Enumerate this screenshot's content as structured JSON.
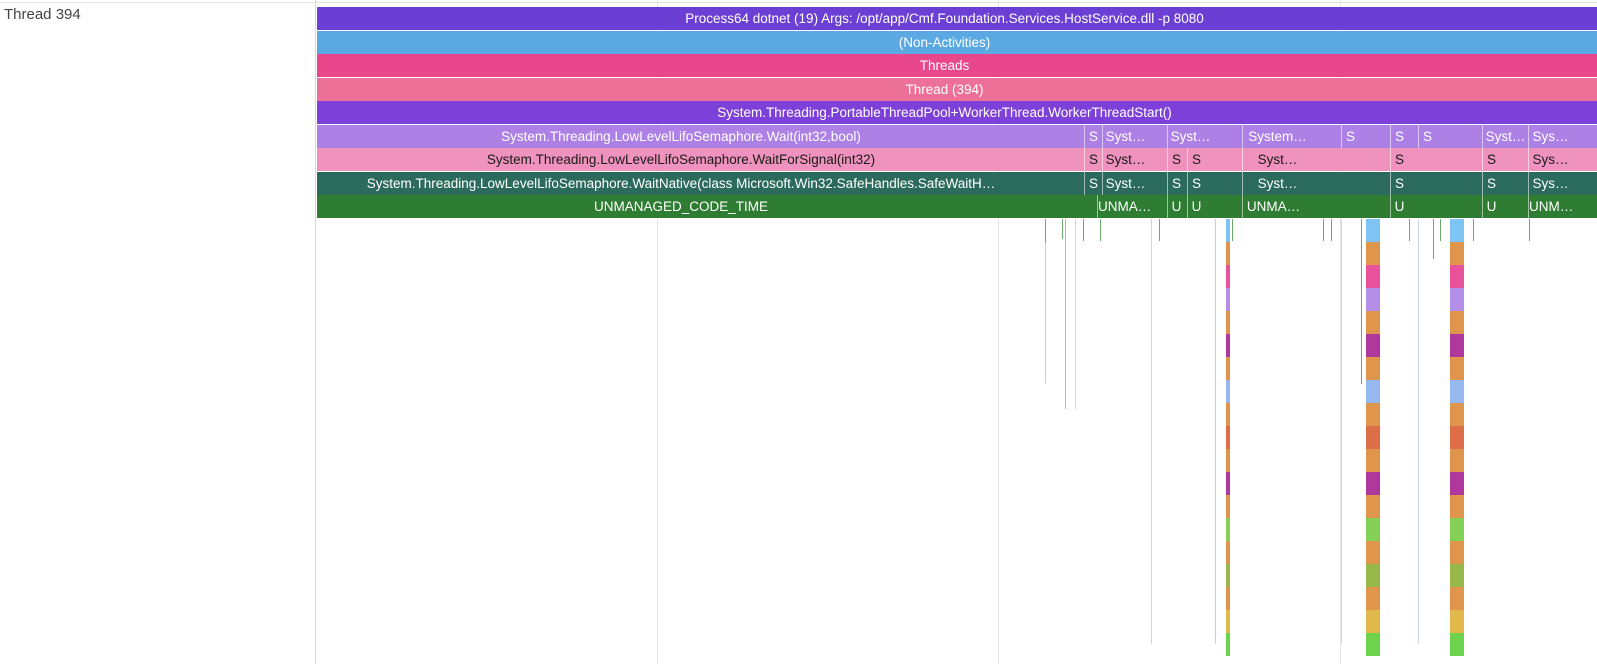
{
  "thread_label": "Thread 394",
  "rows": [
    {
      "label": "Process64 dotnet (19) Args: /opt/app/Cmf.Foundation.Services.HostService.dll -p 8080",
      "color": "#6b3fd4"
    },
    {
      "label": "(Non-Activities)",
      "color": "#5aa9e2"
    },
    {
      "label": "Threads",
      "color": "#e8478b"
    },
    {
      "label": "Thread (394)",
      "color": "#ec7098"
    },
    {
      "label": "System.Threading.PortableThreadPool+WorkerThread.WorkerThreadStart()",
      "color": "#7d40d8"
    },
    {
      "label": "System.Threading.LowLevelLifoSemaphore.Wait(int32,bool)",
      "color": "#ad80e6"
    },
    {
      "label": "System.Threading.LowLevelLifoSemaphore.WaitForSignal(int32)",
      "color": "#ef92bd"
    },
    {
      "label": "System.Threading.LowLevelLifoSemaphore.WaitNative(class Microsoft.Win32.SafeHandles.SafeWaitH…",
      "color": "#2b6b5b"
    },
    {
      "label": "UNMANAGED_CODE_TIME",
      "color": "#2e7d32"
    }
  ],
  "segments": {
    "wait": [
      "S",
      "Syst…",
      "Syst…",
      "System…",
      "S",
      "S",
      "S",
      "Syst…",
      "Sys…"
    ],
    "signal": [
      "S",
      "Syst…",
      "S",
      "S",
      "Syst…",
      "S",
      "S",
      "Sys…"
    ],
    "native": [
      "S",
      "Syst…",
      "S",
      "S",
      "Syst…",
      "S",
      "S",
      "Sys…"
    ],
    "unmanaged": [
      "UNMA…",
      "U",
      "U",
      "UNMA…",
      "U",
      "U",
      "UNM…"
    ]
  },
  "stack_colors": [
    "#7ec4f2",
    "#e0954c",
    "#e8529a",
    "#b48fe8",
    "#e0954c",
    "#b0379b",
    "#e0954c",
    "#95b9ef",
    "#e0954c",
    "#dd6e48",
    "#e0954c",
    "#b0379b",
    "#e0954c",
    "#85d158",
    "#e0954c",
    "#97b84b",
    "#e0954c",
    "#e0b84c",
    "#6dd34d"
  ]
}
